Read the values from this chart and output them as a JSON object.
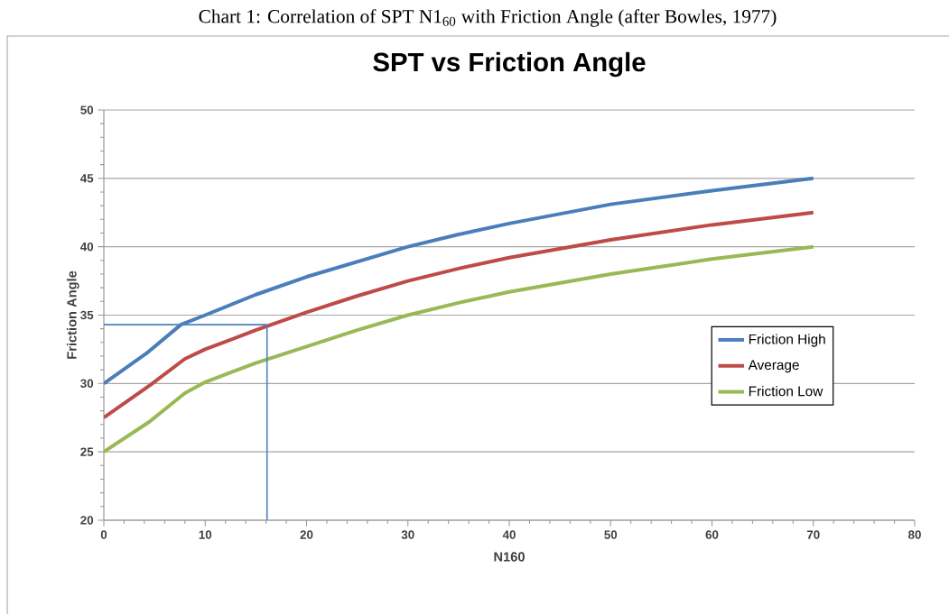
{
  "chart_data": {
    "type": "line",
    "title": "SPT vs Friction Angle",
    "annotations": [
      "Chart 1:  Correlation of SPT N1$_{60}$ with Friction Angle (after Bowles, 1977)"
    ],
    "xlabel": "N160",
    "ylabel": "Friction Angle",
    "xlim": [
      0,
      80
    ],
    "ylim": [
      20,
      50
    ],
    "xticks": [
      0,
      10,
      20,
      30,
      40,
      50,
      60,
      70,
      80
    ],
    "yticks": [
      20,
      25,
      30,
      35,
      40,
      45,
      50
    ],
    "grid": "y",
    "legend": "right",
    "series": [
      {
        "name": "Friction High",
        "color": "#4a7ebb",
        "x": [
          0,
          4.2,
          7.6,
          10,
          15,
          20,
          25,
          30,
          35,
          40,
          50,
          60,
          70
        ],
        "values": [
          30,
          32.2,
          34.3,
          35,
          36.5,
          37.8,
          38.9,
          40,
          40.9,
          41.7,
          43.1,
          44.1,
          45
        ]
      },
      {
        "name": "Average",
        "color": "#be4b48",
        "x": [
          0,
          4.6,
          8,
          10,
          15,
          20,
          25,
          30,
          35,
          40,
          50,
          60,
          70
        ],
        "values": [
          27.5,
          29.9,
          31.8,
          32.5,
          33.9,
          35.2,
          36.4,
          37.5,
          38.4,
          39.2,
          40.5,
          41.6,
          42.5
        ]
      },
      {
        "name": "Friction Low",
        "color": "#98b954",
        "x": [
          0,
          4.5,
          8,
          10,
          15,
          20,
          25,
          30,
          35,
          40,
          50,
          60,
          70
        ],
        "values": [
          25,
          27.2,
          29.3,
          30.1,
          31.5,
          32.7,
          33.9,
          35,
          35.9,
          36.7,
          38,
          39.1,
          40
        ]
      },
      {
        "type": "line",
        "color": "#4f81bd",
        "x": [
          0,
          16.1,
          16.1
        ],
        "values": [
          34.3,
          34.3,
          20
        ]
      }
    ]
  }
}
